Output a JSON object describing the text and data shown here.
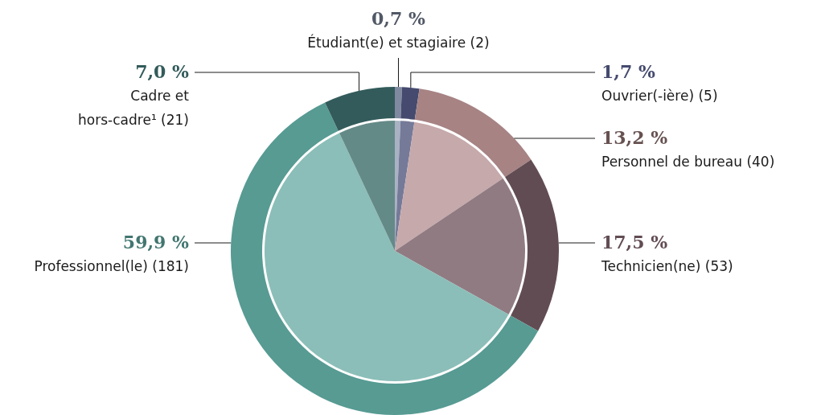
{
  "chart_data": {
    "type": "pie",
    "categories": [
      "Étudiant(e) et stagiaire (2)",
      "Ouvrier(-ière) (5)",
      "Personnel de bureau (40)",
      "Technicien(ne) (53)",
      "Professionnel(le) (181)",
      "Cadre et\nhors-cadre¹ (21)"
    ],
    "series": [
      {
        "type": "donut",
        "values": [
          0.7,
          1.7,
          13.2,
          17.5,
          59.9,
          7.0
        ],
        "value_labels": [
          "0,7 %",
          "1,7 %",
          "13,2 %",
          "17,5 %",
          "59,9 %",
          "7,0 %"
        ],
        "colors": [
          "#7f8aa0",
          "#454a6e",
          "#a78384",
          "#624c53",
          "#579b93",
          "#335b5b"
        ]
      },
      {
        "values": [
          0.7,
          1.7,
          13.2,
          17.5,
          59.9,
          7.0
        ],
        "colors": [
          "#a9b2c2",
          "#767a99",
          "#c6a9ab",
          "#917b82",
          "#8bbeb8",
          "#648a87"
        ]
      }
    ],
    "legend": false
  }
}
